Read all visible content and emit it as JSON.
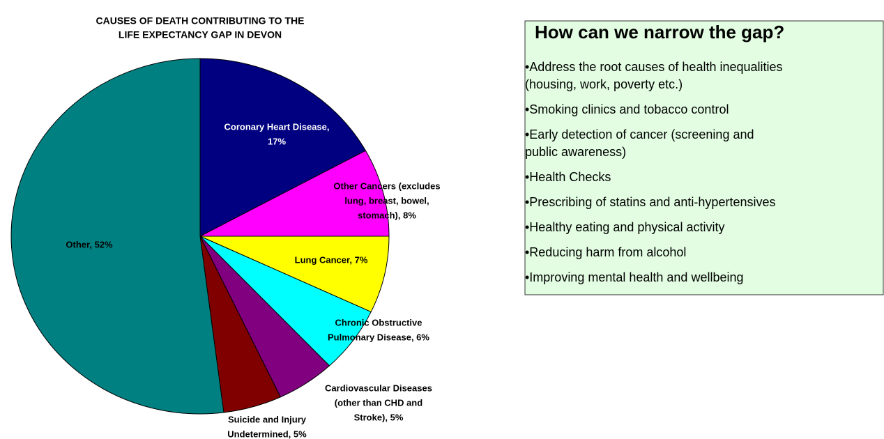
{
  "chart_data": {
    "type": "pie",
    "title": [
      "CAUSES OF DEATH CONTRIBUTING TO THE",
      "LIFE EXPECTANCY GAP IN DEVON"
    ],
    "values": [
      17,
      8,
      7,
      6,
      5,
      5,
      52
    ],
    "value_labels": [
      [
        "Coronary Heart Disease,",
        "17%"
      ],
      [
        "Other Cancers (excludes",
        "lung, breast, bowel,",
        "stomach), 8%"
      ],
      [
        "Lung Cancer, 7%"
      ],
      [
        "Chronic Obstructive",
        "Pulmonary Disease, 6%"
      ],
      [
        "Cardiovascular Diseases",
        "(other than CHD and",
        "Stroke), 5%"
      ],
      [
        "Suicide and Injury",
        "Undetermined, 5%"
      ],
      [
        "Other, 52%"
      ]
    ],
    "colors": [
      "#000080",
      "#ff00ff",
      "#ffff00",
      "#00ffff",
      "#800080",
      "#800000",
      "#008080"
    ]
  },
  "panel": {
    "title": "How can we narrow the gap?",
    "items": [
      [
        "•Address the root causes of health inequalities",
        "(housing, work, poverty etc.)"
      ],
      [
        "•Smoking clinics and tobacco control"
      ],
      [
        "•Early detection of cancer (screening and",
        "public awareness)"
      ],
      [
        "•Health Checks"
      ],
      [
        "•Prescribing of statins and anti-hypertensives"
      ],
      [
        "•Healthy eating and physical activity"
      ],
      [
        "•Reducing harm from alcohol"
      ],
      [
        "•Improving mental health and wellbeing"
      ]
    ]
  }
}
